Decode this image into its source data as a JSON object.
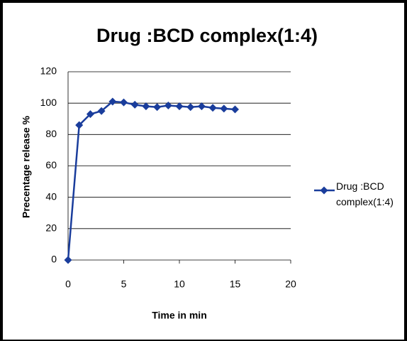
{
  "chart_data": {
    "type": "line",
    "title": "Drug :BCD complex(1:4)",
    "x_label": "Time in min",
    "y_label": "Precentage release %",
    "x": [
      0,
      1,
      2,
      3,
      4,
      5,
      6,
      7,
      8,
      9,
      10,
      11,
      12,
      13,
      14,
      15
    ],
    "series": [
      {
        "name": "Drug :BCD complex(1:4)",
        "color": "#1a3d9c",
        "values": [
          0,
          86,
          93,
          95,
          101,
          100.5,
          99,
          98,
          97.5,
          98.5,
          98,
          97.5,
          98,
          97,
          96.5,
          96
        ]
      }
    ],
    "xlim": [
      0,
      20
    ],
    "xticks": [
      0,
      5,
      10,
      15,
      20
    ],
    "ylim": [
      0,
      120
    ],
    "yticks": [
      0,
      20,
      40,
      60,
      80,
      100,
      120
    ],
    "grid": true,
    "legend": "right"
  }
}
